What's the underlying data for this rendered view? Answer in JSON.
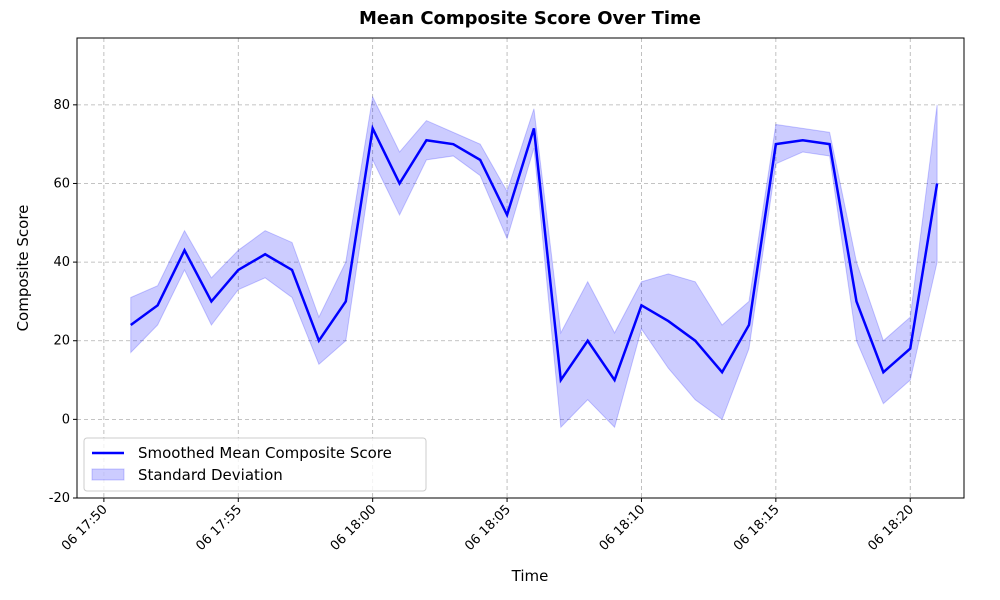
{
  "chart_data": {
    "type": "line-band",
    "title": "Mean Composite Score Over Time",
    "xlabel": "Time",
    "ylabel": "Composite Score",
    "x": [
      "06 17:51",
      "06 17:52",
      "06 17:53",
      "06 17:54",
      "06 17:55",
      "06 17:56",
      "06 17:57",
      "06 17:58",
      "06 17:59",
      "06 18:00",
      "06 18:01",
      "06 18:02",
      "06 18:03",
      "06 18:04",
      "06 18:05",
      "06 18:06",
      "06 18:07",
      "06 18:08",
      "06 18:09",
      "06 18:10",
      "06 18:11",
      "06 18:12",
      "06 18:13",
      "06 18:14",
      "06 18:15",
      "06 18:16",
      "06 18:17",
      "06 18:18",
      "06 18:19",
      "06 18:20",
      "06 18:21"
    ],
    "series": [
      {
        "name": "Smoothed Mean Composite Score",
        "color": "#0000ff",
        "values": [
          24,
          29,
          43,
          30,
          38,
          42,
          38,
          20,
          30,
          74,
          60,
          71,
          70,
          66,
          52,
          74,
          10,
          20,
          10,
          29,
          25,
          20,
          12,
          24,
          70,
          71,
          70,
          30,
          12,
          18,
          60
        ]
      },
      {
        "name": "Standard Deviation",
        "color": "#0000ff",
        "opacity": 0.2,
        "values": [
          7,
          5,
          5,
          6,
          5,
          6,
          7,
          6,
          10,
          8,
          8,
          5,
          3,
          4,
          6,
          5,
          12,
          15,
          12,
          6,
          12,
          15,
          12,
          6,
          5,
          3,
          3,
          10,
          8,
          8,
          20
        ]
      }
    ],
    "xlim": [
      "06 17:49",
      "06 18:22"
    ],
    "xticks": [
      "06 17:50",
      "06 17:55",
      "06 18:00",
      "06 18:05",
      "06 18:10",
      "06 18:15",
      "06 18:20"
    ],
    "ylim": [
      -20,
      97
    ],
    "yticks": [
      -20,
      0,
      20,
      40,
      60,
      80
    ],
    "grid": true,
    "legend": "lower left"
  }
}
